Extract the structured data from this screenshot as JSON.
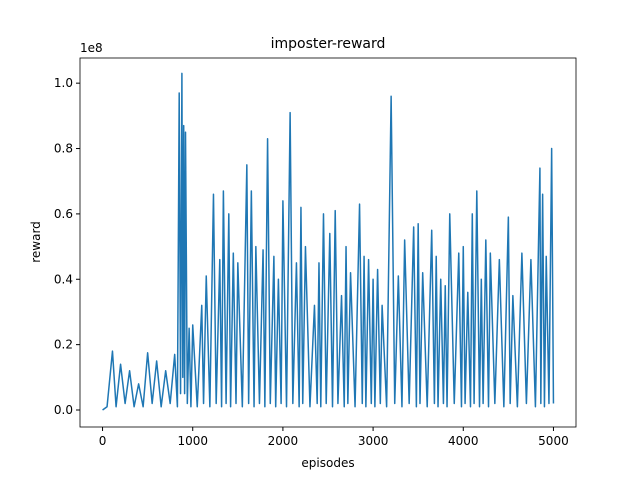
{
  "chart_data": {
    "type": "line",
    "title": "imposter-reward",
    "x_label": "episodes",
    "y_label": "reward",
    "y_offset_label": "1e8",
    "x": [
      0,
      50,
      110,
      150,
      200,
      250,
      300,
      350,
      400,
      450,
      500,
      550,
      600,
      650,
      700,
      750,
      800,
      830,
      850,
      865,
      880,
      890,
      900,
      910,
      920,
      940,
      960,
      980,
      1000,
      1050,
      1100,
      1120,
      1150,
      1190,
      1230,
      1260,
      1300,
      1320,
      1340,
      1370,
      1400,
      1420,
      1450,
      1480,
      1500,
      1550,
      1600,
      1620,
      1650,
      1680,
      1700,
      1740,
      1780,
      1800,
      1830,
      1860,
      1900,
      1920,
      1950,
      1980,
      2000,
      2040,
      2080,
      2110,
      2150,
      2180,
      2200,
      2220,
      2250,
      2300,
      2350,
      2380,
      2400,
      2420,
      2450,
      2480,
      2520,
      2550,
      2580,
      2610,
      2650,
      2680,
      2700,
      2720,
      2750,
      2800,
      2850,
      2880,
      2900,
      2920,
      2950,
      2980,
      3000,
      3020,
      3050,
      3080,
      3100,
      3150,
      3200,
      3240,
      3280,
      3320,
      3350,
      3400,
      3450,
      3480,
      3500,
      3520,
      3550,
      3600,
      3650,
      3680,
      3700,
      3720,
      3750,
      3780,
      3800,
      3820,
      3850,
      3900,
      3950,
      3980,
      4000,
      4020,
      4050,
      4080,
      4100,
      4120,
      4150,
      4180,
      4200,
      4220,
      4250,
      4280,
      4300,
      4350,
      4400,
      4450,
      4500,
      4520,
      4550,
      4600,
      4650,
      4700,
      4750,
      4800,
      4850,
      4860,
      4880,
      4900,
      4920,
      4950,
      4980,
      5000
    ],
    "series": [
      {
        "name": "reward",
        "color": "#1f77b4",
        "values": [
          0.0,
          0.01,
          0.18,
          0.01,
          0.14,
          0.02,
          0.12,
          0.01,
          0.08,
          0.01,
          0.175,
          0.02,
          0.15,
          0.01,
          0.12,
          0.02,
          0.17,
          0.01,
          0.97,
          0.05,
          1.03,
          0.1,
          0.87,
          0.05,
          0.85,
          0.02,
          0.25,
          0.01,
          0.26,
          0.01,
          0.32,
          0.02,
          0.41,
          0.01,
          0.66,
          0.02,
          0.46,
          0.01,
          0.67,
          0.02,
          0.6,
          0.01,
          0.48,
          0.02,
          0.45,
          0.01,
          0.75,
          0.02,
          0.67,
          0.01,
          0.5,
          0.02,
          0.49,
          0.01,
          0.83,
          0.02,
          0.47,
          0.01,
          0.4,
          0.02,
          0.64,
          0.01,
          0.91,
          0.02,
          0.45,
          0.01,
          0.62,
          0.02,
          0.5,
          0.01,
          0.32,
          0.02,
          0.45,
          0.01,
          0.6,
          0.02,
          0.54,
          0.01,
          0.61,
          0.02,
          0.35,
          0.01,
          0.5,
          0.02,
          0.42,
          0.01,
          0.63,
          0.02,
          0.47,
          0.01,
          0.46,
          0.02,
          0.4,
          0.01,
          0.43,
          0.02,
          0.32,
          0.01,
          0.96,
          0.02,
          0.41,
          0.01,
          0.52,
          0.02,
          0.56,
          0.01,
          0.57,
          0.02,
          0.42,
          0.01,
          0.55,
          0.02,
          0.47,
          0.01,
          0.4,
          0.02,
          0.38,
          0.01,
          0.6,
          0.02,
          0.48,
          0.01,
          0.5,
          0.02,
          0.36,
          0.01,
          0.6,
          0.02,
          0.67,
          0.01,
          0.4,
          0.02,
          0.52,
          0.01,
          0.48,
          0.02,
          0.46,
          0.01,
          0.59,
          0.02,
          0.35,
          0.01,
          0.48,
          0.02,
          0.46,
          0.01,
          0.74,
          0.02,
          0.66,
          0.01,
          0.47,
          0.02,
          0.8,
          0.02
        ]
      }
    ],
    "xlim": [
      -250,
      5250
    ],
    "xticks": [
      0,
      1000,
      2000,
      3000,
      4000,
      5000
    ],
    "ylim": [
      -0.052,
      1.077
    ],
    "yticks": [
      {
        "value": 0,
        "label": "0.0"
      },
      0.2,
      0.4,
      0.6,
      0.8,
      {
        "value": 1,
        "label": "1.0"
      }
    ]
  }
}
